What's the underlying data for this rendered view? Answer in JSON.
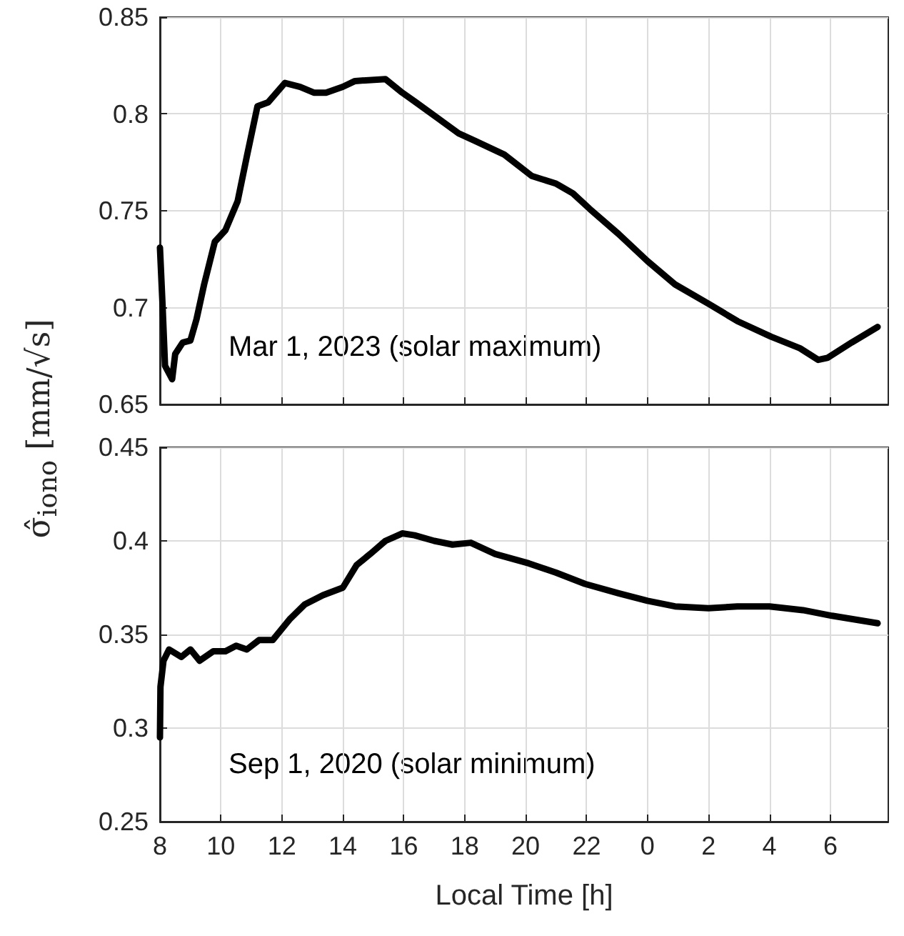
{
  "chart_data": [
    {
      "type": "line",
      "ylabel": "σ̂$_{iono}$ [mm/√s]",
      "annotations": [
        "Mar 1, 2023 (solar maximum)"
      ],
      "xlim": [
        "2023-03-01T08:00",
        "2023-03-02T07:54"
      ],
      "xticks": [
        {
          "value": "2023-03-01T08:00",
          "label": "8"
        },
        {
          "value": "2023-03-01T10:00",
          "label": "10"
        },
        {
          "value": "2023-03-01T12:00",
          "label": "12"
        },
        {
          "value": "2023-03-01T14:00",
          "label": "14"
        },
        {
          "value": "2023-03-01T16:00",
          "label": "16"
        },
        {
          "value": "2023-03-01T18:00",
          "label": "18"
        },
        {
          "value": "2023-03-01T20:00",
          "label": "20"
        },
        {
          "value": "2023-03-01T22:00",
          "label": "22"
        },
        {
          "value": "2023-03-02T00:00",
          "label": "0"
        },
        {
          "value": "2023-03-02T02:00",
          "label": "2"
        },
        {
          "value": "2023-03-02T04:00",
          "label": "4"
        },
        {
          "value": "2023-03-02T06:00",
          "label": "6"
        }
      ],
      "ylim": [
        0.65,
        0.85
      ],
      "yticks": [
        0.65,
        0.7,
        0.75,
        0.8,
        0.85
      ],
      "grid": true,
      "tick_labels": "y",
      "series": [
        {
          "color": "#000000",
          "x": [
            "2023-03-01T08:00",
            "2023-03-01T08:05",
            "2023-03-01T08:10",
            "2023-03-01T08:24",
            "2023-03-01T08:30",
            "2023-03-01T08:45",
            "2023-03-01T09:00",
            "2023-03-01T09:12",
            "2023-03-01T09:27",
            "2023-03-01T09:48",
            "2023-03-01T10:09",
            "2023-03-01T10:33",
            "2023-03-01T10:51",
            "2023-03-01T11:12",
            "2023-03-01T11:33",
            "2023-03-01T12:06",
            "2023-03-01T12:36",
            "2023-03-01T13:03",
            "2023-03-01T13:27",
            "2023-03-01T14:00",
            "2023-03-01T14:24",
            "2023-03-01T15:24",
            "2023-03-01T15:57",
            "2023-03-01T16:24",
            "2023-03-01T17:06",
            "2023-03-01T17:48",
            "2023-03-01T18:21",
            "2023-03-01T19:18",
            "2023-03-01T20:12",
            "2023-03-01T21:00",
            "2023-03-01T21:33",
            "2023-03-01T22:06",
            "2023-03-01T23:03",
            "2023-03-02T00:00",
            "2023-03-02T00:54",
            "2023-03-02T02:00",
            "2023-03-02T02:57",
            "2023-03-02T04:03",
            "2023-03-02T05:00",
            "2023-03-02T05:36",
            "2023-03-02T05:54",
            "2023-03-02T06:42",
            "2023-03-02T07:33"
          ],
          "values": [
            0.731,
            0.702,
            0.67,
            0.663,
            0.676,
            0.682,
            0.683,
            0.694,
            0.712,
            0.734,
            0.74,
            0.755,
            0.778,
            0.804,
            0.806,
            0.816,
            0.814,
            0.811,
            0.811,
            0.814,
            0.817,
            0.818,
            0.811,
            0.806,
            0.798,
            0.79,
            0.786,
            0.779,
            0.768,
            0.764,
            0.759,
            0.751,
            0.738,
            0.724,
            0.712,
            0.702,
            0.693,
            0.685,
            0.679,
            0.673,
            0.674,
            0.682,
            0.69
          ]
        }
      ]
    },
    {
      "type": "line",
      "xlabel": "Local Time [h]",
      "annotations": [
        "Sep 1, 2020 (solar minimum)"
      ],
      "xlim": [
        "2020-09-01T08:00",
        "2020-09-02T07:54"
      ],
      "xticks": [
        {
          "value": "2020-09-01T08:00",
          "label": "8"
        },
        {
          "value": "2020-09-01T10:00",
          "label": "10"
        },
        {
          "value": "2020-09-01T12:00",
          "label": "12"
        },
        {
          "value": "2020-09-01T14:00",
          "label": "14"
        },
        {
          "value": "2020-09-01T16:00",
          "label": "16"
        },
        {
          "value": "2020-09-01T18:00",
          "label": "18"
        },
        {
          "value": "2020-09-01T20:00",
          "label": "20"
        },
        {
          "value": "2020-09-01T22:00",
          "label": "22"
        },
        {
          "value": "2020-09-02T00:00",
          "label": "0"
        },
        {
          "value": "2020-09-02T02:00",
          "label": "2"
        },
        {
          "value": "2020-09-02T04:00",
          "label": "4"
        },
        {
          "value": "2020-09-02T06:00",
          "label": "6"
        }
      ],
      "ylim": [
        0.25,
        0.45
      ],
      "yticks": [
        0.25,
        0.3,
        0.35,
        0.4,
        0.45
      ],
      "grid": true,
      "series": [
        {
          "color": "#000000",
          "x": [
            "2020-09-01T08:00",
            "2020-09-01T08:01",
            "2020-09-01T08:07",
            "2020-09-01T08:18",
            "2020-09-01T08:42",
            "2020-09-01T09:00",
            "2020-09-01T09:18",
            "2020-09-01T09:45",
            "2020-09-01T10:09",
            "2020-09-01T10:30",
            "2020-09-01T10:51",
            "2020-09-01T11:15",
            "2020-09-01T11:42",
            "2020-09-01T12:15",
            "2020-09-01T12:45",
            "2020-09-01T13:21",
            "2020-09-01T14:00",
            "2020-09-01T14:27",
            "2020-09-01T14:54",
            "2020-09-01T15:24",
            "2020-09-01T15:57",
            "2020-09-01T16:21",
            "2020-09-01T17:00",
            "2020-09-01T17:36",
            "2020-09-01T18:12",
            "2020-09-01T19:00",
            "2020-09-01T20:06",
            "2020-09-01T21:00",
            "2020-09-01T21:57",
            "2020-09-01T23:03",
            "2020-09-02T00:00",
            "2020-09-02T00:54",
            "2020-09-02T02:00",
            "2020-09-02T02:57",
            "2020-09-02T04:00",
            "2020-09-02T05:06",
            "2020-09-02T06:03",
            "2020-09-02T07:33"
          ],
          "values": [
            0.295,
            0.322,
            0.336,
            0.342,
            0.338,
            0.342,
            0.336,
            0.341,
            0.341,
            0.344,
            0.342,
            0.347,
            0.347,
            0.358,
            0.366,
            0.371,
            0.375,
            0.387,
            0.393,
            0.4,
            0.404,
            0.403,
            0.4,
            0.398,
            0.399,
            0.393,
            0.388,
            0.383,
            0.377,
            0.372,
            0.368,
            0.365,
            0.364,
            0.365,
            0.365,
            0.363,
            0.36,
            0.356
          ]
        }
      ]
    }
  ]
}
